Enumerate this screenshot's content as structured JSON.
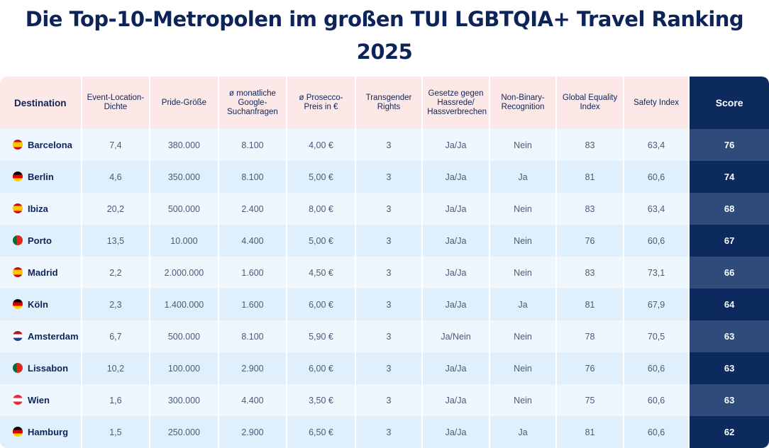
{
  "title": "Die Top-10-Metropolen im großen TUI LGBTQIA+ Travel Ranking 2025",
  "colors": {
    "title": "#0d2459",
    "header_bg": "#fde8e8",
    "score_header_bg": "#0c2a5e",
    "row_odd_bg": "#eef7fe",
    "row_even_bg": "#dff0fc",
    "score_odd_bg": "#2e4b7a",
    "score_even_bg": "#0c2a5e"
  },
  "columns": [
    "Destination",
    "Event-Location-Dichte",
    "Pride-Größe",
    "ø monatliche Google-Suchanfragen",
    "ø Prosecco-Preis in €",
    "Transgender Rights",
    "Gesetze gegen Hassrede/ Hassverbrechen",
    "Non-Binary-Recognition",
    "Global Equality Index",
    "Safety Index",
    "Score"
  ],
  "rows": [
    {
      "flag": "spain-flag-icon",
      "destination": "Barcelona",
      "event_density": "7,4",
      "pride_size": "380.000",
      "searches": "8.100",
      "prosecco": "4,00 €",
      "trans_rights": "3",
      "hate_laws": "Ja/Ja",
      "non_binary": "Nein",
      "gei": "83",
      "safety": "63,4",
      "score": "76"
    },
    {
      "flag": "germany-flag-icon",
      "destination": "Berlin",
      "event_density": "4,6",
      "pride_size": "350.000",
      "searches": "8.100",
      "prosecco": "5,00 €",
      "trans_rights": "3",
      "hate_laws": "Ja/Ja",
      "non_binary": "Ja",
      "gei": "81",
      "safety": "60,6",
      "score": "74"
    },
    {
      "flag": "spain-flag-icon",
      "destination": "Ibiza",
      "event_density": "20,2",
      "pride_size": "500.000",
      "searches": "2.400",
      "prosecco": "8,00 €",
      "trans_rights": "3",
      "hate_laws": "Ja/Ja",
      "non_binary": "Nein",
      "gei": "83",
      "safety": "63,4",
      "score": "68"
    },
    {
      "flag": "portugal-flag-icon",
      "destination": "Porto",
      "event_density": "13,5",
      "pride_size": "10.000",
      "searches": "4.400",
      "prosecco": "5,00 €",
      "trans_rights": "3",
      "hate_laws": "Ja/Ja",
      "non_binary": "Nein",
      "gei": "76",
      "safety": "60,6",
      "score": "67"
    },
    {
      "flag": "spain-flag-icon",
      "destination": "Madrid",
      "event_density": "2,2",
      "pride_size": "2.000.000",
      "searches": "1.600",
      "prosecco": "4,50 €",
      "trans_rights": "3",
      "hate_laws": "Ja/Ja",
      "non_binary": "Nein",
      "gei": "83",
      "safety": "73,1",
      "score": "66"
    },
    {
      "flag": "germany-flag-icon",
      "destination": "Köln",
      "event_density": "2,3",
      "pride_size": "1.400.000",
      "searches": "1.600",
      "prosecco": "6,00 €",
      "trans_rights": "3",
      "hate_laws": "Ja/Ja",
      "non_binary": "Ja",
      "gei": "81",
      "safety": "67,9",
      "score": "64"
    },
    {
      "flag": "netherlands-flag-icon",
      "destination": "Amsterdam",
      "event_density": "6,7",
      "pride_size": "500.000",
      "searches": "8.100",
      "prosecco": "5,90 €",
      "trans_rights": "3",
      "hate_laws": "Ja/Nein",
      "non_binary": "Nein",
      "gei": "78",
      "safety": "70,5",
      "score": "63"
    },
    {
      "flag": "portugal-flag-icon",
      "destination": "Lissabon",
      "event_density": "10,2",
      "pride_size": "100.000",
      "searches": "2.900",
      "prosecco": "6,00 €",
      "trans_rights": "3",
      "hate_laws": "Ja/Ja",
      "non_binary": "Nein",
      "gei": "76",
      "safety": "60,6",
      "score": "63"
    },
    {
      "flag": "austria-flag-icon",
      "destination": "Wien",
      "event_density": "1,6",
      "pride_size": "300.000",
      "searches": "4.400",
      "prosecco": "3,50 €",
      "trans_rights": "3",
      "hate_laws": "Ja/Ja",
      "non_binary": "Nein",
      "gei": "75",
      "safety": "60,6",
      "score": "63"
    },
    {
      "flag": "germany-flag-icon",
      "destination": "Hamburg",
      "event_density": "1,5",
      "pride_size": "250.000",
      "searches": "2.900",
      "prosecco": "6,50 €",
      "trans_rights": "3",
      "hate_laws": "Ja/Ja",
      "non_binary": "Ja",
      "gei": "81",
      "safety": "60,6",
      "score": "62"
    }
  ],
  "chart_data": {
    "type": "table",
    "title": "Die Top-10-Metropolen im großen TUI LGBTQIA+ Travel Ranking 2025",
    "columns": [
      "Destination",
      "Event-Location-Dichte",
      "Pride-Größe",
      "ø monatliche Google-Suchanfragen",
      "ø Prosecco-Preis in €",
      "Transgender Rights",
      "Gesetze gegen Hassrede/ Hassverbrechen",
      "Non-Binary-Recognition",
      "Global Equality Index",
      "Safety Index",
      "Score"
    ],
    "categories": [
      "Barcelona",
      "Berlin",
      "Ibiza",
      "Porto",
      "Madrid",
      "Köln",
      "Amsterdam",
      "Lissabon",
      "Wien",
      "Hamburg"
    ],
    "series": [
      {
        "name": "Event-Location-Dichte",
        "values": [
          7.4,
          4.6,
          20.2,
          13.5,
          2.2,
          2.3,
          6.7,
          10.2,
          1.6,
          1.5
        ]
      },
      {
        "name": "Pride-Größe",
        "values": [
          380000,
          350000,
          500000,
          10000,
          2000000,
          1400000,
          500000,
          100000,
          300000,
          250000
        ]
      },
      {
        "name": "ø monatliche Google-Suchanfragen",
        "values": [
          8100,
          8100,
          2400,
          4400,
          1600,
          1600,
          8100,
          2900,
          4400,
          2900
        ]
      },
      {
        "name": "ø Prosecco-Preis in €",
        "values": [
          4.0,
          5.0,
          8.0,
          5.0,
          4.5,
          6.0,
          5.9,
          6.0,
          3.5,
          6.5
        ]
      },
      {
        "name": "Transgender Rights",
        "values": [
          3,
          3,
          3,
          3,
          3,
          3,
          3,
          3,
          3,
          3
        ]
      },
      {
        "name": "Gesetze gegen Hassrede/ Hassverbrechen",
        "values": [
          "Ja/Ja",
          "Ja/Ja",
          "Ja/Ja",
          "Ja/Ja",
          "Ja/Ja",
          "Ja/Ja",
          "Ja/Nein",
          "Ja/Ja",
          "Ja/Ja",
          "Ja/Ja"
        ]
      },
      {
        "name": "Non-Binary-Recognition",
        "values": [
          "Nein",
          "Ja",
          "Nein",
          "Nein",
          "Nein",
          "Ja",
          "Nein",
          "Nein",
          "Nein",
          "Ja"
        ]
      },
      {
        "name": "Global Equality Index",
        "values": [
          83,
          81,
          83,
          76,
          83,
          81,
          78,
          76,
          75,
          81
        ]
      },
      {
        "name": "Safety Index",
        "values": [
          63.4,
          60.6,
          63.4,
          60.6,
          73.1,
          67.9,
          70.5,
          60.6,
          60.6,
          60.6
        ]
      },
      {
        "name": "Score",
        "values": [
          76,
          74,
          68,
          67,
          66,
          64,
          63,
          63,
          63,
          62
        ]
      }
    ]
  }
}
